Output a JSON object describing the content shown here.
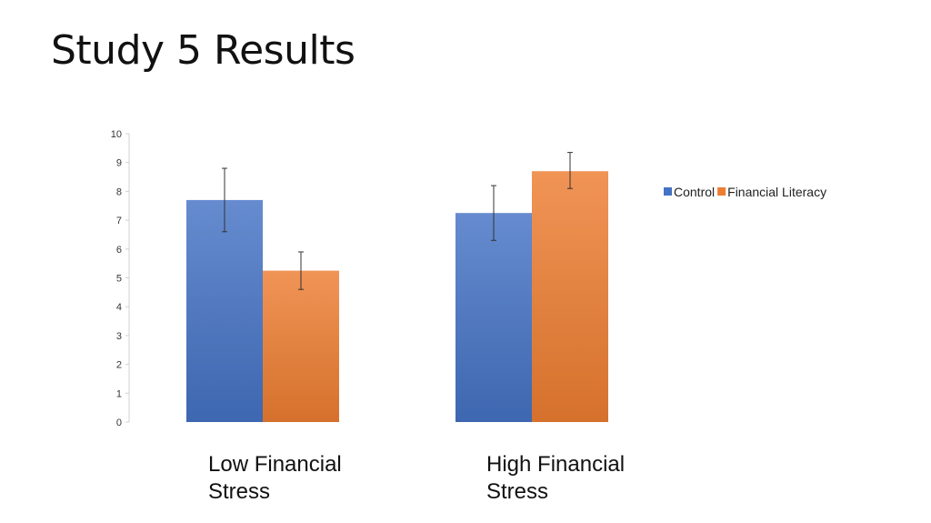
{
  "slide": {
    "title": "Study 5 Results"
  },
  "chart_data": {
    "type": "bar",
    "categories": [
      "Low Financial Stress",
      "High Financial Stress"
    ],
    "category_lines": [
      [
        "Low Financial",
        "Stress"
      ],
      [
        "High Financial",
        "Stress"
      ]
    ],
    "series": [
      {
        "name": "Control",
        "values": [
          7.7,
          7.25
        ],
        "error_low": [
          6.6,
          6.3
        ],
        "error_high": [
          8.8,
          8.2
        ],
        "color": "#4472C4"
      },
      {
        "name": "Financial Literacy",
        "values": [
          5.25,
          8.7
        ],
        "error_low": [
          4.6,
          8.1
        ],
        "error_high": [
          5.9,
          9.35
        ],
        "color": "#ED7D31"
      }
    ],
    "ylim": [
      0,
      10
    ],
    "yticks": [
      0,
      1,
      2,
      3,
      4,
      5,
      6,
      7,
      8,
      9,
      10
    ],
    "title": "",
    "xlabel": "",
    "ylabel": "",
    "grid": false,
    "legend_position": "right"
  }
}
